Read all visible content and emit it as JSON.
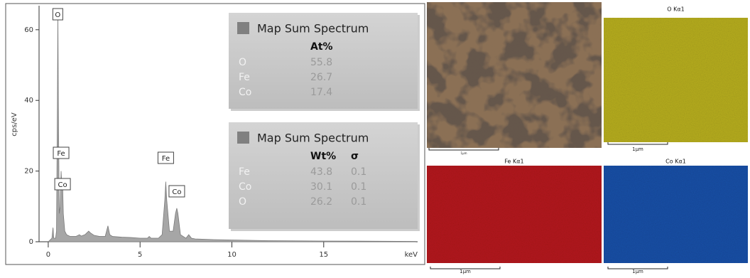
{
  "chart_data": {
    "type": "area",
    "y_label": "cps/eV",
    "x_label": "keV",
    "x": [
      0.0,
      0.1,
      0.2,
      0.26,
      0.3,
      0.4,
      0.45,
      0.5,
      0.525,
      0.55,
      0.6,
      0.65,
      0.7,
      0.75,
      0.78,
      0.82,
      0.9,
      1.0,
      1.2,
      1.5,
      1.7,
      1.8,
      2.0,
      2.2,
      2.3,
      2.5,
      2.8,
      3.1,
      3.25,
      3.35,
      3.5,
      4.0,
      4.5,
      5.0,
      5.4,
      5.5,
      5.6,
      6.0,
      6.2,
      6.35,
      6.4,
      6.45,
      6.6,
      6.8,
      6.93,
      7.0,
      7.06,
      7.2,
      7.5,
      7.65,
      7.8,
      8.0,
      9.0,
      10.0,
      12.0,
      15.0,
      20.0
    ],
    "values": [
      0,
      0.5,
      1,
      4,
      1,
      1,
      3,
      40,
      65,
      40,
      8,
      10,
      20,
      15,
      17,
      8,
      3,
      2,
      1.5,
      1.5,
      2,
      1.6,
      2,
      3,
      2.5,
      1.8,
      1.5,
      1.5,
      4.5,
      2,
      1.5,
      1.3,
      1.2,
      1,
      1,
      1.5,
      1,
      1,
      2,
      12,
      17,
      12,
      3,
      3,
      8,
      9.5,
      8,
      2,
      1,
      2,
      1,
      0.8,
      0.6,
      0.5,
      0.3,
      0.2,
      0.1
    ],
    "color": "#a6a6a6",
    "xlim": [
      -0.5,
      20.5
    ],
    "xticks": [
      0,
      5,
      10,
      15
    ],
    "ylim": [
      0,
      66
    ],
    "yticks": [
      0,
      20,
      40,
      60
    ],
    "annotations": [
      {
        "text": "O",
        "x": 0.52
      },
      {
        "text": "Fe",
        "x": 0.7
      },
      {
        "text": "Co",
        "x": 0.78
      },
      {
        "text": "Fe",
        "x": 6.4
      },
      {
        "text": "Co",
        "x": 7.0
      }
    ]
  },
  "tables": [
    {
      "title": "Map Sum Spectrum",
      "columns": [
        "At%"
      ],
      "rows": [
        {
          "element": "O",
          "values": [
            55.8
          ]
        },
        {
          "element": "Fe",
          "values": [
            26.7
          ]
        },
        {
          "element": "Co",
          "values": [
            17.4
          ]
        }
      ]
    },
    {
      "title": "Map Sum Spectrum",
      "columns": [
        "Wt%",
        "σ"
      ],
      "rows": [
        {
          "element": "Fe",
          "values": [
            43.8,
            0.1
          ]
        },
        {
          "element": "Co",
          "values": [
            30.1,
            0.1
          ]
        },
        {
          "element": "O",
          "values": [
            26.2,
            0.1
          ]
        }
      ]
    }
  ],
  "maps": [
    {
      "scale": "1μm"
    },
    {
      "label": "O Kα1",
      "scale": "1μm"
    },
    {
      "label": "Fe Kα1",
      "scale": "1μm"
    },
    {
      "label": "Co Kα1",
      "scale": "1μm"
    }
  ]
}
